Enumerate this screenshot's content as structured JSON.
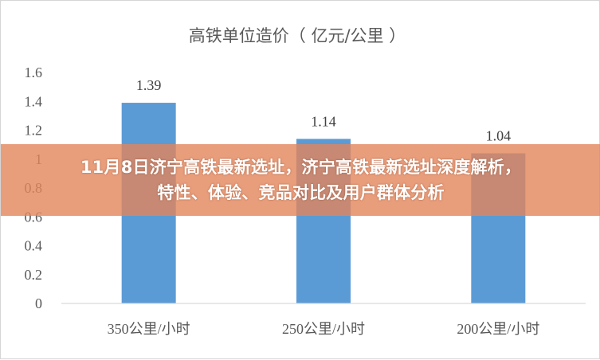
{
  "banner": {
    "line1": "11月8日济宁高铁最新选址，济宁高铁最新选址深度解析，",
    "line2": "特性、体验、竞品对比及用户群体分析",
    "color": "#e2845a"
  },
  "chart_data": {
    "type": "bar",
    "title": "高铁单位造价（亿元/公里）",
    "title_display": "高铁单位造价（ 亿元/公里 ）",
    "categories": [
      "350公里/小时",
      "250公里/小时",
      "200公里/小时"
    ],
    "values": [
      1.39,
      1.14,
      1.04
    ],
    "data_labels": [
      "1.39",
      "1.14",
      "1.04"
    ],
    "xlabel": "",
    "ylabel": "",
    "ylim": [
      0,
      1.6
    ],
    "yticks": [
      0,
      0.2,
      0.4,
      0.6,
      0.8,
      1,
      1.2,
      1.4,
      1.6
    ],
    "ytick_labels": [
      "0",
      "0.2",
      "0.4",
      "0.6",
      "0.8",
      "1",
      "1.2",
      "1.4",
      "1.6"
    ],
    "grid": false,
    "legend": "none",
    "bar_color": "#5b9bd5"
  }
}
